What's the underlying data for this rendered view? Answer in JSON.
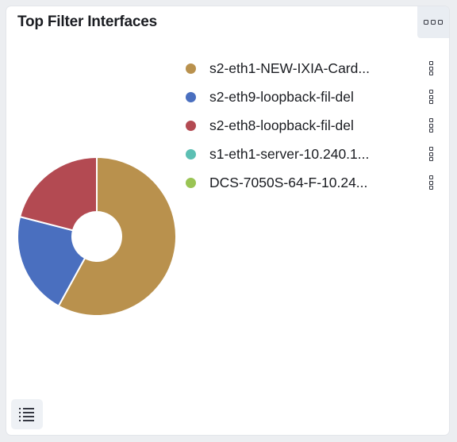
{
  "panel": {
    "title": "Top Filter Interfaces",
    "menu_icon": "boxes-horizontal-icon",
    "legend_toggle_icon": "list-icon"
  },
  "colors": {
    "background": "#eceef1",
    "panel": "#ffffff",
    "series": [
      "#b9914d",
      "#4a6fbf",
      "#b34a52",
      "#5cbfb3",
      "#9ac454"
    ]
  },
  "chart_data": {
    "type": "pie",
    "donut": true,
    "categories": [
      "s2-eth1-NEW-IXIA-Card...",
      "s2-eth9-loopback-fil-del",
      "s2-eth8-loopback-fil-del",
      "s1-eth1-server-10.240.1...",
      "DCS-7050S-64-F-10.24..."
    ],
    "values": [
      58,
      21,
      21,
      0,
      0
    ],
    "legend_position": "right"
  }
}
